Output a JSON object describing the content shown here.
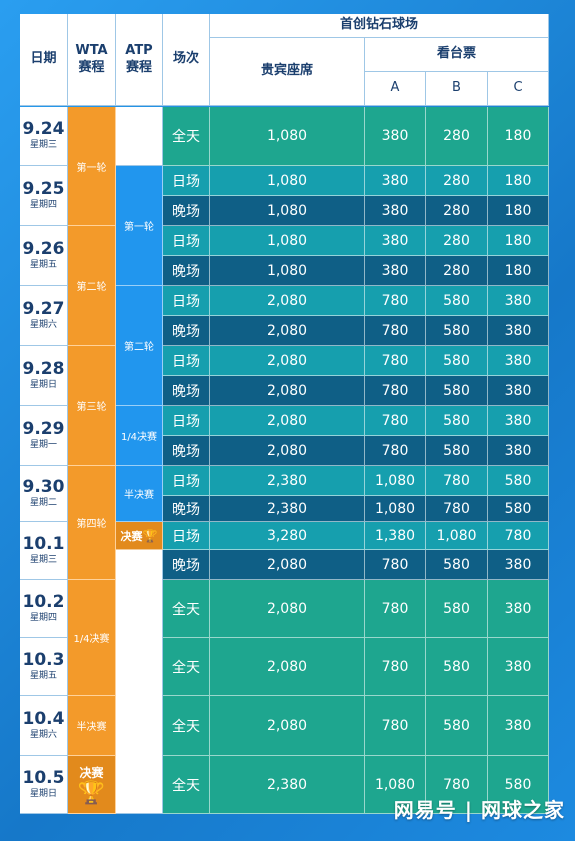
{
  "header": {
    "date": "日期",
    "wta": "WTA\n赛程",
    "atp": "ATP\n赛程",
    "session": "场次",
    "venue": "首创钻石球场",
    "vip": "贵宾座席",
    "stand": "看台票",
    "cat_a": "A",
    "cat_b": "B",
    "cat_c": "C"
  },
  "dates": [
    {
      "d": "9.24",
      "w": "星期三"
    },
    {
      "d": "9.25",
      "w": "星期四"
    },
    {
      "d": "9.26",
      "w": "星期五"
    },
    {
      "d": "9.27",
      "w": "星期六"
    },
    {
      "d": "9.28",
      "w": "星期日"
    },
    {
      "d": "9.29",
      "w": "星期一"
    },
    {
      "d": "9.30",
      "w": "星期二"
    },
    {
      "d": "10.1",
      "w": "星期三"
    },
    {
      "d": "10.2",
      "w": "星期四"
    },
    {
      "d": "10.3",
      "w": "星期五"
    },
    {
      "d": "10.4",
      "w": "星期六"
    },
    {
      "d": "10.5",
      "w": "星期日"
    }
  ],
  "wta_rounds": [
    "第一轮",
    "第二轮",
    "第三轮",
    "第四轮",
    "1/4决赛",
    "半决赛",
    "决赛"
  ],
  "atp_rounds": [
    "第一轮",
    "第二轮",
    "1/4决赛",
    "半决赛",
    "决赛"
  ],
  "rows": [
    {
      "session": "全天",
      "vip": "1,080",
      "a": "380",
      "b": "280",
      "c": "180"
    },
    {
      "session": "日场",
      "vip": "1,080",
      "a": "380",
      "b": "280",
      "c": "180"
    },
    {
      "session": "晚场",
      "vip": "1,080",
      "a": "380",
      "b": "280",
      "c": "180"
    },
    {
      "session": "日场",
      "vip": "1,080",
      "a": "380",
      "b": "280",
      "c": "180"
    },
    {
      "session": "晚场",
      "vip": "1,080",
      "a": "380",
      "b": "280",
      "c": "180"
    },
    {
      "session": "日场",
      "vip": "2,080",
      "a": "780",
      "b": "580",
      "c": "380"
    },
    {
      "session": "晚场",
      "vip": "2,080",
      "a": "780",
      "b": "580",
      "c": "380"
    },
    {
      "session": "日场",
      "vip": "2,080",
      "a": "780",
      "b": "580",
      "c": "380"
    },
    {
      "session": "晚场",
      "vip": "2,080",
      "a": "780",
      "b": "580",
      "c": "380"
    },
    {
      "session": "日场",
      "vip": "2,080",
      "a": "780",
      "b": "580",
      "c": "380"
    },
    {
      "session": "晚场",
      "vip": "2,080",
      "a": "780",
      "b": "580",
      "c": "380"
    },
    {
      "session": "日场",
      "vip": "2,380",
      "a": "1,080",
      "b": "780",
      "c": "580"
    },
    {
      "session": "晚场",
      "vip": "2,380",
      "a": "1,080",
      "b": "780",
      "c": "580"
    },
    {
      "session": "日场",
      "vip": "3,280",
      "a": "1,380",
      "b": "1,080",
      "c": "780"
    },
    {
      "session": "晚场",
      "vip": "2,080",
      "a": "780",
      "b": "580",
      "c": "380"
    },
    {
      "session": "全天",
      "vip": "2,080",
      "a": "780",
      "b": "580",
      "c": "380"
    },
    {
      "session": "全天",
      "vip": "2,080",
      "a": "780",
      "b": "580",
      "c": "380"
    },
    {
      "session": "全天",
      "vip": "2,080",
      "a": "780",
      "b": "580",
      "c": "380"
    },
    {
      "session": "全天",
      "vip": "2,380",
      "a": "1,080",
      "b": "780",
      "c": "580"
    }
  ],
  "colors": {
    "allday": "#1ea68f",
    "day": "#169fae",
    "evening": "#0f5f86",
    "wta": "#f39a2a",
    "atp": "#2196ee"
  },
  "icons": {
    "trophy": "trophy-icon"
  },
  "watermark": "网易号 | 网球之家"
}
